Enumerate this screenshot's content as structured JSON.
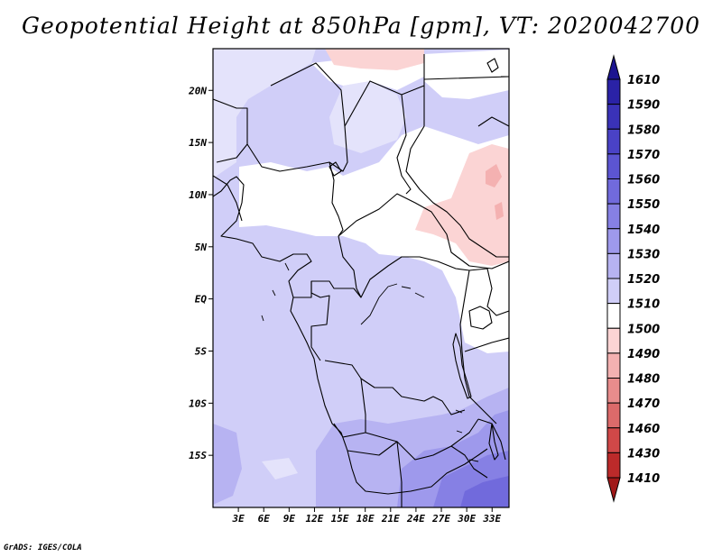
{
  "title": "Geopotential Height at 850hPa [gpm], VT: 2020042700",
  "credit": "GrADS: IGES/COLA",
  "map": {
    "variable": "Geopotential Height",
    "level": "850hPa",
    "units": "gpm",
    "valid_time": "2020042700",
    "lon_range_deg": [
      0,
      35
    ],
    "lat_range_deg": [
      -20,
      24
    ],
    "lat_ticks": [
      {
        "value": 20,
        "label": "20N"
      },
      {
        "value": 15,
        "label": "15N"
      },
      {
        "value": 10,
        "label": "10N"
      },
      {
        "value": 5,
        "label": "5N"
      },
      {
        "value": 0,
        "label": "EQ"
      },
      {
        "value": -5,
        "label": "5S"
      },
      {
        "value": -10,
        "label": "10S"
      },
      {
        "value": -15,
        "label": "15S"
      }
    ],
    "lon_ticks": [
      {
        "value": 3,
        "label": "3E"
      },
      {
        "value": 6,
        "label": "6E"
      },
      {
        "value": 9,
        "label": "9E"
      },
      {
        "value": 12,
        "label": "12E"
      },
      {
        "value": 15,
        "label": "15E"
      },
      {
        "value": 18,
        "label": "18E"
      },
      {
        "value": 21,
        "label": "21E"
      },
      {
        "value": 24,
        "label": "24E"
      },
      {
        "value": 27,
        "label": "27E"
      },
      {
        "value": 30,
        "label": "30E"
      },
      {
        "value": 33,
        "label": "33E"
      }
    ]
  },
  "colorbar": {
    "labels": [
      "1610",
      "1590",
      "1580",
      "1570",
      "1560",
      "1550",
      "1540",
      "1530",
      "1520",
      "1510",
      "1500",
      "1490",
      "1480",
      "1470",
      "1460",
      "1430",
      "1410"
    ],
    "colors": [
      "#1c1490",
      "#2a22a6",
      "#3a32b8",
      "#4a42c6",
      "#5c55d2",
      "#716adc",
      "#8680e4",
      "#9e99ec",
      "#b7b3f2",
      "#d0cef8",
      "#ffffff",
      "#fbd4d4",
      "#f4b1b1",
      "#e88c8c",
      "#dc6a6a",
      "#d04848",
      "#bc2a2a",
      "#a01818"
    ]
  }
}
